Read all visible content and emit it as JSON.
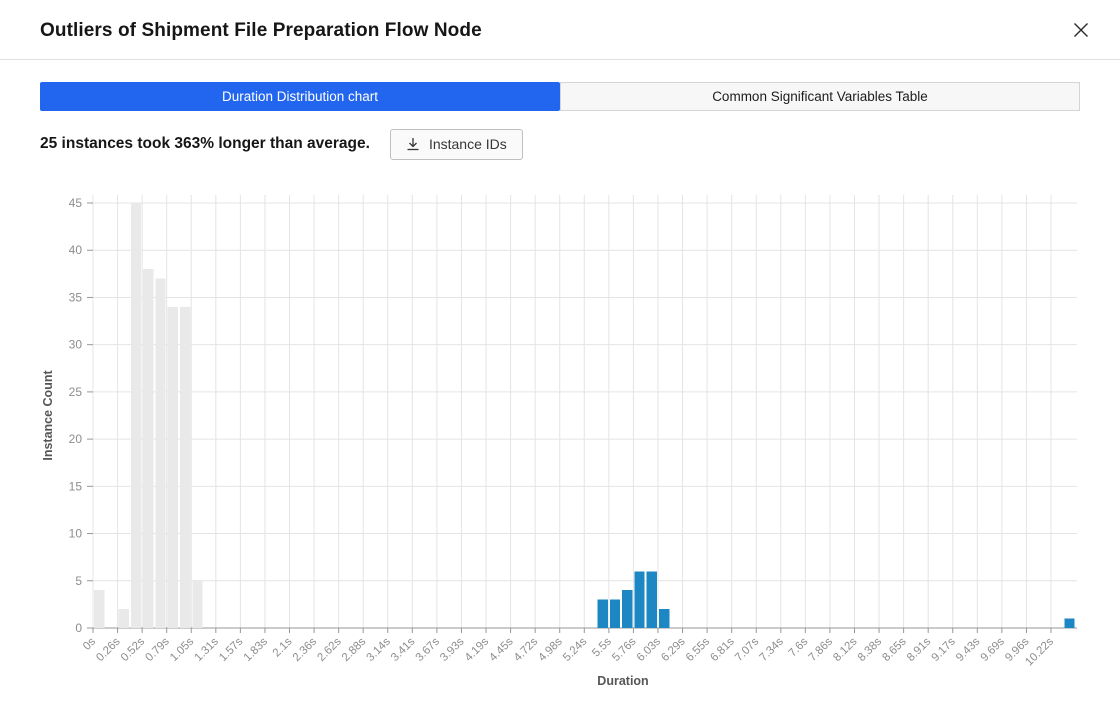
{
  "modal": {
    "title": "Outliers of Shipment File Preparation Flow Node",
    "close_icon": "x"
  },
  "tabs": [
    {
      "label": "Duration Distribution chart",
      "active": true
    },
    {
      "label": "Common Significant Variables Table",
      "active": false
    }
  ],
  "summary": {
    "text": "25 instances took 363% longer than average.",
    "button_label": "Instance IDs"
  },
  "colors": {
    "accent_blue": "#2266f0",
    "outlier_bar": "#1d87c4",
    "normal_bar": "#e9e9e9",
    "grid": "#e4e4e4",
    "axis_line": "#979797",
    "tick_label": "#8d8d8d",
    "axis_title": "#565656"
  },
  "chart_data": {
    "type": "bar",
    "subtype": "histogram",
    "xlabel": "Duration",
    "ylabel": "Instance Count",
    "ylim": [
      0,
      45
    ],
    "y_ticks": [
      0,
      5,
      10,
      15,
      20,
      25,
      30,
      35,
      40,
      45
    ],
    "x_tick_labels": [
      "0s",
      "0.26s",
      "0.52s",
      "0.79s",
      "1.05s",
      "1.31s",
      "1.57s",
      "1.83s",
      "2.1s",
      "2.36s",
      "2.62s",
      "2.88s",
      "3.14s",
      "3.41s",
      "3.67s",
      "3.93s",
      "4.19s",
      "4.45s",
      "4.72s",
      "4.98s",
      "5.24s",
      "5.5s",
      "5.76s",
      "6.03s",
      "6.29s",
      "6.55s",
      "6.81s",
      "7.07s",
      "7.34s",
      "7.6s",
      "7.86s",
      "8.12s",
      "8.38s",
      "8.65s",
      "8.91s",
      "9.17s",
      "9.43s",
      "9.69s",
      "9.96s",
      "10.22s"
    ],
    "bin_width_s": 0.131,
    "grid": true,
    "legend": null,
    "bars": [
      {
        "bin": 0,
        "start_s": 0.0,
        "count": 4,
        "series": "normal"
      },
      {
        "bin": 2,
        "start_s": 0.26,
        "count": 2,
        "series": "normal"
      },
      {
        "bin": 3,
        "start_s": 0.39,
        "count": 45,
        "series": "normal"
      },
      {
        "bin": 4,
        "start_s": 0.52,
        "count": 38,
        "series": "normal"
      },
      {
        "bin": 5,
        "start_s": 0.66,
        "count": 37,
        "series": "normal"
      },
      {
        "bin": 6,
        "start_s": 0.79,
        "count": 34,
        "series": "normal"
      },
      {
        "bin": 7,
        "start_s": 0.92,
        "count": 34,
        "series": "normal"
      },
      {
        "bin": 8,
        "start_s": 1.05,
        "count": 5,
        "series": "normal"
      },
      {
        "bin": 41,
        "start_s": 5.37,
        "count": 3,
        "series": "outlier"
      },
      {
        "bin": 42,
        "start_s": 5.5,
        "count": 3,
        "series": "outlier"
      },
      {
        "bin": 43,
        "start_s": 5.63,
        "count": 4,
        "series": "outlier"
      },
      {
        "bin": 44,
        "start_s": 5.76,
        "count": 6,
        "series": "outlier"
      },
      {
        "bin": 45,
        "start_s": 5.89,
        "count": 6,
        "series": "outlier"
      },
      {
        "bin": 46,
        "start_s": 6.03,
        "count": 2,
        "series": "outlier"
      },
      {
        "bin": 79,
        "start_s": 10.35,
        "count": 1,
        "series": "outlier"
      }
    ]
  }
}
